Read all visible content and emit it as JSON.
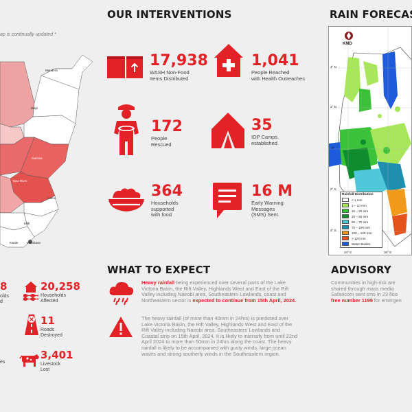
{
  "left": {
    "note": "ap is continually updated *",
    "map_labels": [
      "Mandera",
      "Wajir",
      "Garissa",
      "Tana River",
      "Lamu",
      "Kilifi",
      "Kwale",
      "Mombasa"
    ],
    "bottom_stats": [
      {
        "number": "8",
        "label": "olds\nd"
      },
      {
        "number": "",
        "label": "es"
      }
    ]
  },
  "interventions": {
    "title": "OUR INTERVENTIONS",
    "items": [
      {
        "number": "17,938",
        "label": "WASH Non-Food\nItems Distributed",
        "icon": "wash-kit-icon"
      },
      {
        "number": "1,041",
        "label": "People Reached\nwith Health Outreaches",
        "icon": "health-house-icon"
      },
      {
        "number": "172",
        "label": "People\nRescued",
        "icon": "rescuer-icon"
      },
      {
        "number": "35",
        "label": "IDP Camps\nestablished",
        "icon": "tent-icon"
      },
      {
        "number": "364",
        "label": "Households\nsupported\nwith food",
        "icon": "food-bowl-icon"
      },
      {
        "number": "16 M",
        "label": "Early Warning\nMessages\n(SMS) Sent.",
        "icon": "message-icon"
      }
    ]
  },
  "impact": {
    "items": [
      {
        "number": "20,258",
        "label": "Households\nAffected",
        "icon": "flooded-house-icon"
      },
      {
        "number": "11",
        "label": "Roads\nDestroyed",
        "icon": "road-icon"
      },
      {
        "number": "3,401",
        "label": "Livestock\nLost",
        "icon": "cow-icon"
      }
    ]
  },
  "expect": {
    "title": "WHAT TO EXPECT",
    "p1_highlight": "Heavy rainfall",
    "p1_text": " being experienced over several parts of the Lake Victoria Basin, the Rift Valley, Highlands West and East of the Rift Valley including Nairobi area, Southeastern Lowlands, coast and Northeastern sector is ",
    "p1_highlight2": "expected to continue from 15th April, 2024.",
    "p2_text": "The heavy rainfall (of more than 40mm in 24hrs) is predicted over Lake Victoria Basin, the Rift Valley, Highlands West and East of the Rift Valley including Nairobi area, Southeastern Lowlands and Coastal strip on 15th April, 2024. It is likely to intensify from until 22nd April 2024 to more than 50mm in 24hrs along the coast. The heavy rainfall is likely to be accompanied with gusty winds, large ocean waves and strong southerly winds in the Southeastern region."
  },
  "forecast": {
    "title": "RAIN FORECAST",
    "agency": "KMD",
    "lat_labels": [
      "4° N",
      "2° N",
      "0°",
      "2° S",
      "4° S"
    ],
    "lon_labels": [
      "34° E",
      "36° E"
    ],
    "legend_title": "Rainfall Distribution",
    "legend": [
      {
        "label": "< 1 mm",
        "color": "#ffffff"
      },
      {
        "label": "1 – 10 mm",
        "color": "#a8e65a"
      },
      {
        "label": "10 – 20 mm",
        "color": "#3cc23a"
      },
      {
        "label": "20 – 50 mm",
        "color": "#0f8c2e"
      },
      {
        "label": "50 – 70 mm",
        "color": "#4fc9d9"
      },
      {
        "label": "70 – 100 mm",
        "color": "#1f8fb0"
      },
      {
        "label": "100 – 120 mm",
        "color": "#f39a1a"
      },
      {
        "label": "> 120 mm",
        "color": "#e4531b"
      },
      {
        "label": "Water Bodies",
        "color": "#1e5adc"
      }
    ]
  },
  "advisory": {
    "title": "ADVISORY",
    "line1": "Communities in high-risk are",
    "line2": "shared through mass media",
    "line3": "Safaricom sent sms in 23 floo",
    "line4_highlight": "free number 1199",
    "line4_text": " for emergen"
  },
  "colors": {
    "accent": "#e32227",
    "background": "#efefef"
  }
}
